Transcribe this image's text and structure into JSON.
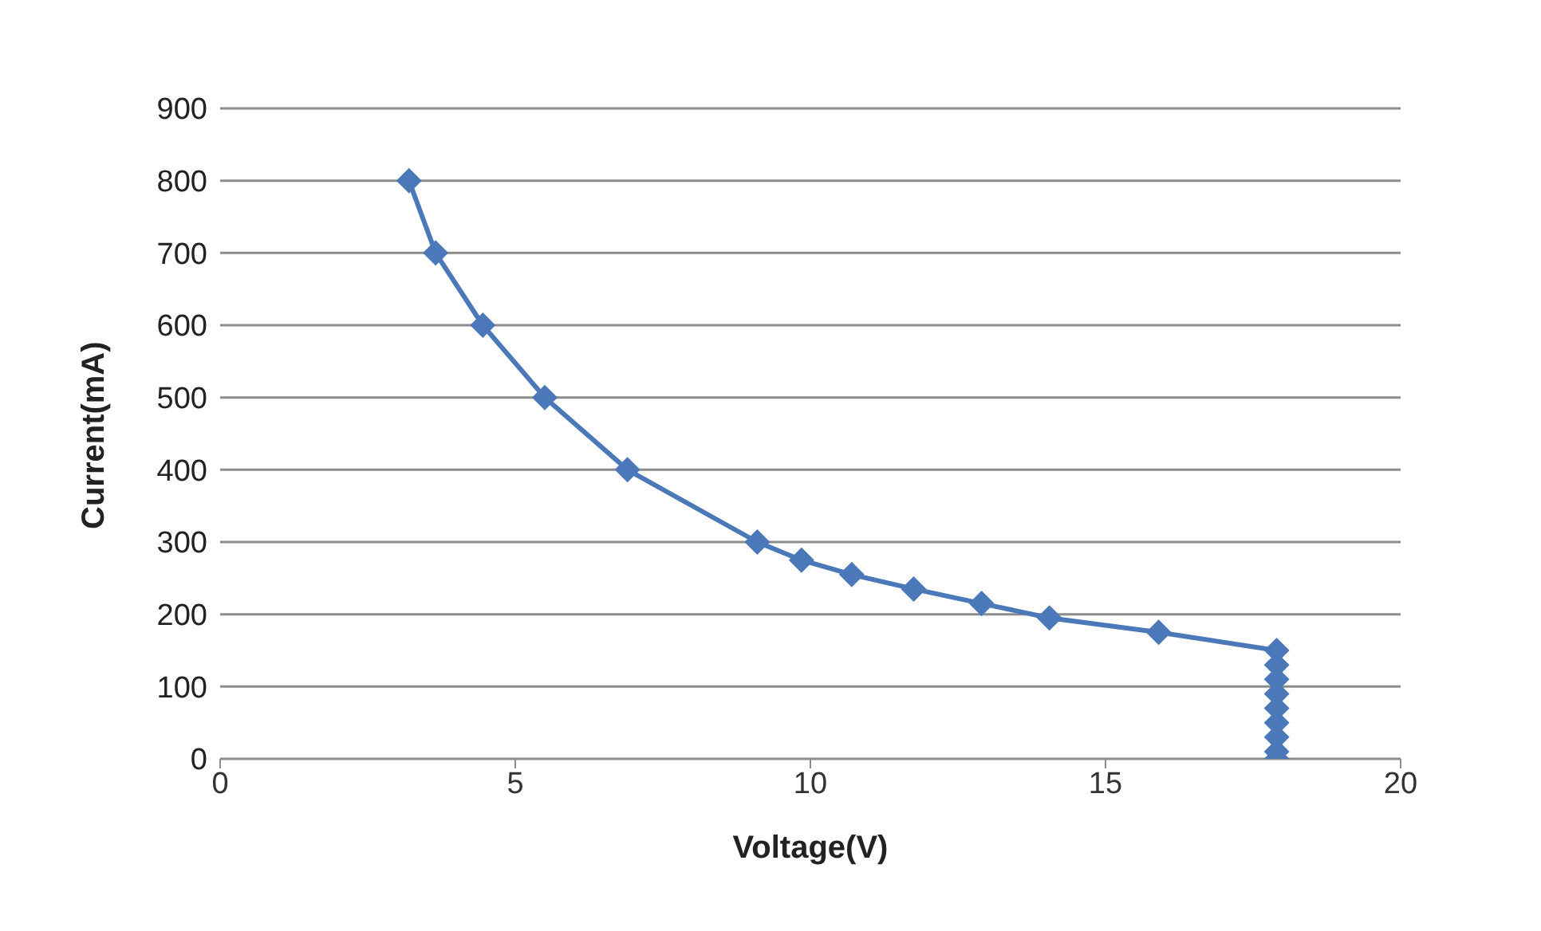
{
  "chart_data": {
    "type": "line",
    "xlabel": "Voltage(V)",
    "ylabel": "Current(mA)",
    "x": [
      3.2,
      3.65,
      4.45,
      5.5,
      6.9,
      9.1,
      9.85,
      10.7,
      11.75,
      12.9,
      14.05,
      15.9,
      17.9,
      17.9,
      17.9,
      17.9,
      17.9,
      17.9,
      17.9,
      17.9,
      17.9
    ],
    "series": [
      {
        "color": "#4a78b8",
        "values": [
          800,
          700,
          600,
          500,
          400,
          300,
          275,
          255,
          235,
          215,
          195,
          175,
          150,
          130,
          110,
          90,
          70,
          50,
          30,
          10,
          0
        ]
      }
    ],
    "xlim": [
      0,
      20
    ],
    "xticks": [
      0,
      5,
      10,
      15,
      20
    ],
    "ylim": [
      0,
      900
    ],
    "yticks": [
      0,
      100,
      200,
      300,
      400,
      500,
      600,
      700,
      800,
      900
    ],
    "grid": "y",
    "legend": false,
    "marker": "diamond",
    "line_style": "solid"
  }
}
